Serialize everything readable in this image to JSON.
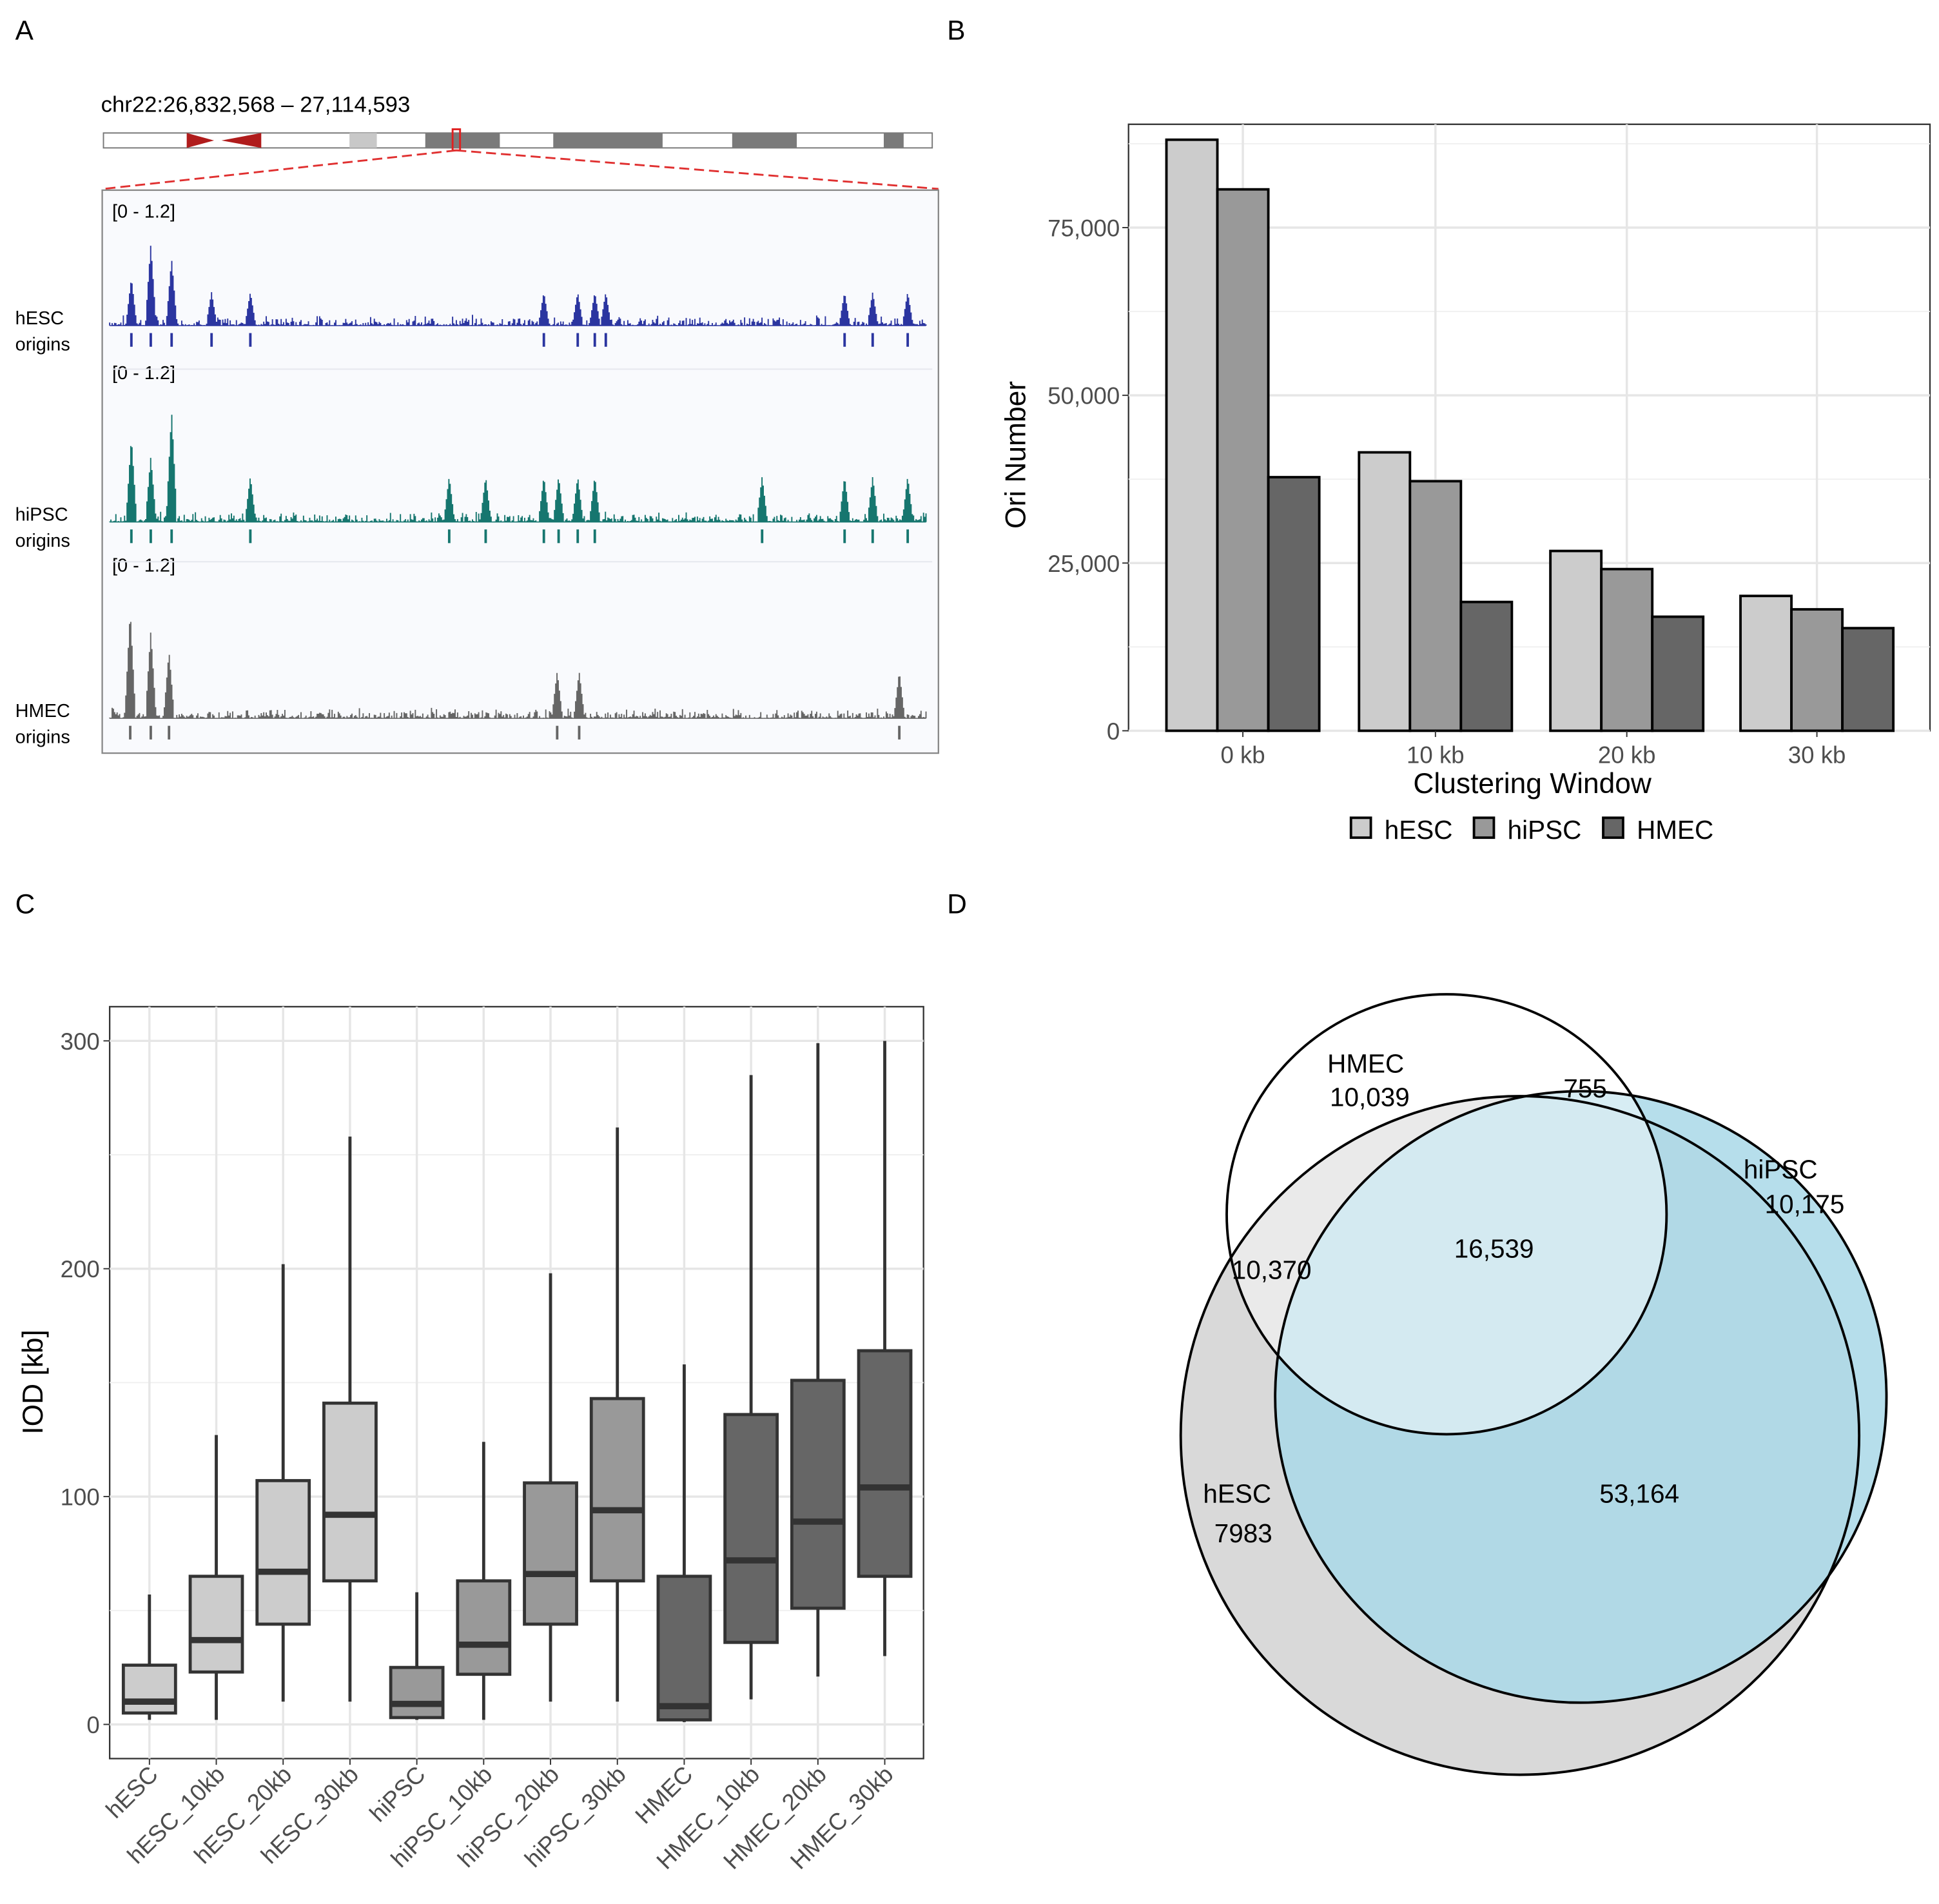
{
  "panels": {
    "a": "A",
    "b": "B",
    "c": "C",
    "d": "D"
  },
  "panel_a": {
    "region_label": "chr22:26,832,568 – 27,114,593",
    "region_start": 26832568,
    "region_end": 27114593,
    "tracks": [
      {
        "name": "hESC",
        "sub": "origins",
        "range": "[0 - 1.2]",
        "color": "#2b35a0",
        "origins_kb": [
          7.5,
          14.2,
          21.4,
          35.2,
          48.6,
          150,
          161.7,
          167.6,
          171.4,
          253.9,
          263.6,
          275.7
        ]
      },
      {
        "name": "hiPSC",
        "sub": "origins",
        "range": "[0 - 1.2]",
        "color": "#16766f",
        "origins_kb": [
          7.5,
          14.2,
          21.4,
          48.6,
          117.3,
          129.9,
          150,
          155.1,
          161.7,
          167.6,
          225.4,
          253.9,
          263.6,
          275.7
        ]
      },
      {
        "name": "HMEC",
        "sub": "origins",
        "range": "[0 - 1.2]",
        "color": "#666666",
        "origins_kb": [
          7.1,
          14.2,
          20.5,
          154.6,
          162.2,
          272.8
        ]
      }
    ]
  },
  "chart_data": [
    {
      "type": "bar",
      "panel": "B",
      "categories": [
        "0 kb",
        "10 kb",
        "20 kb",
        "30 kb"
      ],
      "series": [
        {
          "name": "hESC",
          "color": "#cccccc",
          "values": [
            88100,
            41500,
            26800,
            20100
          ]
        },
        {
          "name": "hiPSC",
          "color": "#999999",
          "values": [
            80700,
            37200,
            24100,
            18100
          ]
        },
        {
          "name": "HMEC",
          "color": "#666666",
          "values": [
            37800,
            19200,
            17000,
            15300
          ]
        }
      ],
      "xlabel": "Clustering Window",
      "ylabel": "Ori Number",
      "yticks": [
        0,
        25000,
        50000,
        75000
      ],
      "ytick_labels": [
        "0",
        "25,000",
        "50,000",
        "75,000"
      ],
      "ylim": [
        0,
        90400
      ],
      "grid": true,
      "legend": "bottom"
    },
    {
      "type": "box",
      "panel": "C",
      "categories": [
        "hESC",
        "hESC_10kb",
        "hESC_20kb",
        "hESC_30kb",
        "hiPSC",
        "hiPSC_10kb",
        "hiPSC_20kb",
        "hiPSC_30kb",
        "HMEC",
        "HMEC_10kb",
        "HMEC_20kb",
        "HMEC_30kb"
      ],
      "colors": [
        "#cccccc",
        "#cccccc",
        "#cccccc",
        "#cccccc",
        "#999999",
        "#999999",
        "#999999",
        "#999999",
        "#666666",
        "#666666",
        "#666666",
        "#666666"
      ],
      "stats": [
        {
          "low": 2,
          "q1": 5,
          "median": 10,
          "q3": 26,
          "high": 57
        },
        {
          "low": 2,
          "q1": 23,
          "median": 37,
          "q3": 65,
          "high": 127
        },
        {
          "low": 10,
          "q1": 44,
          "median": 67,
          "q3": 107,
          "high": 202
        },
        {
          "low": 10,
          "q1": 63,
          "median": 92,
          "q3": 141,
          "high": 258
        },
        {
          "low": 2,
          "q1": 3,
          "median": 9,
          "q3": 25,
          "high": 58
        },
        {
          "low": 2,
          "q1": 22,
          "median": 35,
          "q3": 63,
          "high": 124
        },
        {
          "low": 10,
          "q1": 44,
          "median": 66,
          "q3": 106,
          "high": 198
        },
        {
          "low": 10,
          "q1": 63,
          "median": 94,
          "q3": 143,
          "high": 262
        },
        {
          "low": 1,
          "q1": 2,
          "median": 8,
          "q3": 65,
          "high": 158
        },
        {
          "low": 11,
          "q1": 36,
          "median": 72,
          "q3": 136,
          "high": 285
        },
        {
          "low": 21,
          "q1": 51,
          "median": 89,
          "q3": 151,
          "high": 299
        },
        {
          "low": 30,
          "q1": 65,
          "median": 104,
          "q3": 164,
          "high": 300
        }
      ],
      "xlabel": "",
      "ylabel": "IOD [kb]",
      "yticks": [
        0,
        100,
        200,
        300
      ],
      "ylim": [
        -15,
        315
      ],
      "grid": true
    },
    {
      "type": "venn",
      "panel": "D",
      "sets": [
        {
          "name": "HMEC",
          "only": "10,039"
        },
        {
          "name": "hiPSC",
          "only": "10,175"
        },
        {
          "name": "hESC",
          "only": "7983"
        }
      ],
      "intersections": {
        "HMEC_hiPSC": "755",
        "HMEC_hESC": "10,370",
        "all": "16,539",
        "hESC_hiPSC": "53,164"
      }
    }
  ]
}
